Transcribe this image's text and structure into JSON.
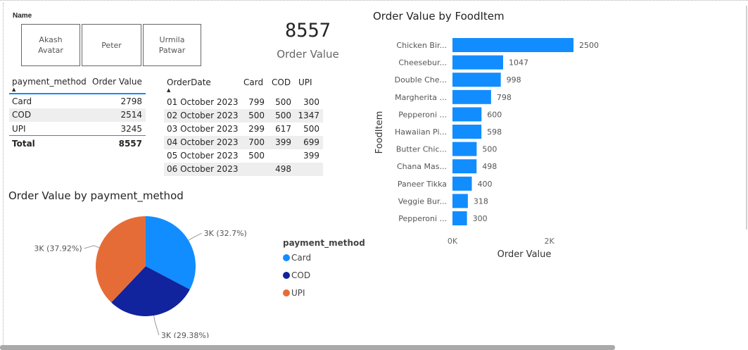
{
  "slicer": {
    "title": "Name",
    "items": [
      {
        "line1": "Akash",
        "line2": "Avatar"
      },
      {
        "line1": "Peter",
        "line2": ""
      },
      {
        "line1": "Urmila",
        "line2": "Patwar"
      }
    ]
  },
  "kpi": {
    "value": "8557",
    "label": "Order Value"
  },
  "payment_table": {
    "headers": [
      "payment_method",
      "Order Value"
    ],
    "rows": [
      {
        "method": "Card",
        "value": "2798"
      },
      {
        "method": "COD",
        "value": "2514"
      },
      {
        "method": "UPI",
        "value": "3245"
      }
    ],
    "total_label": "Total",
    "total_value": "8557"
  },
  "date_table": {
    "headers": [
      "OrderDate",
      "Card",
      "COD",
      "UPI"
    ],
    "rows": [
      {
        "date": "01 October 2023",
        "card": "799",
        "cod": "500",
        "upi": "300"
      },
      {
        "date": "02 October 2023",
        "card": "500",
        "cod": "500",
        "upi": "1347"
      },
      {
        "date": "03 October 2023",
        "card": "299",
        "cod": "617",
        "upi": "500"
      },
      {
        "date": "04 October 2023",
        "card": "700",
        "cod": "399",
        "upi": "699"
      },
      {
        "date": "05 October 2023",
        "card": "500",
        "cod": "",
        "upi": "399"
      },
      {
        "date": "06 October 2023",
        "card": "",
        "cod": "498",
        "upi": ""
      }
    ]
  },
  "colors": {
    "card": "#118dff",
    "cod": "#12239e",
    "upi": "#e66c37",
    "bar": "#118dff",
    "row_alt": "#eeeeee",
    "accent_line": "#118dff"
  },
  "chart_data": [
    {
      "type": "pie",
      "title": "Order Value by payment_method",
      "legend_title": "payment_method",
      "legend_position": "right",
      "categories": [
        "Card",
        "COD",
        "UPI"
      ],
      "values": [
        2798,
        2514,
        3245
      ],
      "data_labels": [
        "3K (32.7%)",
        "3K (29.38%)",
        "3K (37.92%)"
      ]
    },
    {
      "type": "bar",
      "orientation": "horizontal",
      "title": "Order Value by FoodItem",
      "xlabel": "Order Value",
      "ylabel": "FoodItem",
      "categories": [
        "Chicken Bir...",
        "Cheesebur...",
        "Double Che...",
        "Margherita ...",
        "Pepperoni ...",
        "Hawaiian Pi...",
        "Butter Chic...",
        "Chana Mas...",
        "Paneer Tikka",
        "Veggie Bur...",
        "Pepperoni ..."
      ],
      "values": [
        2500,
        1047,
        998,
        798,
        600,
        598,
        500,
        498,
        400,
        318,
        300
      ],
      "x_ticks": [
        "0K",
        "2K"
      ],
      "xlim": [
        0,
        2500
      ],
      "grid": false
    }
  ]
}
